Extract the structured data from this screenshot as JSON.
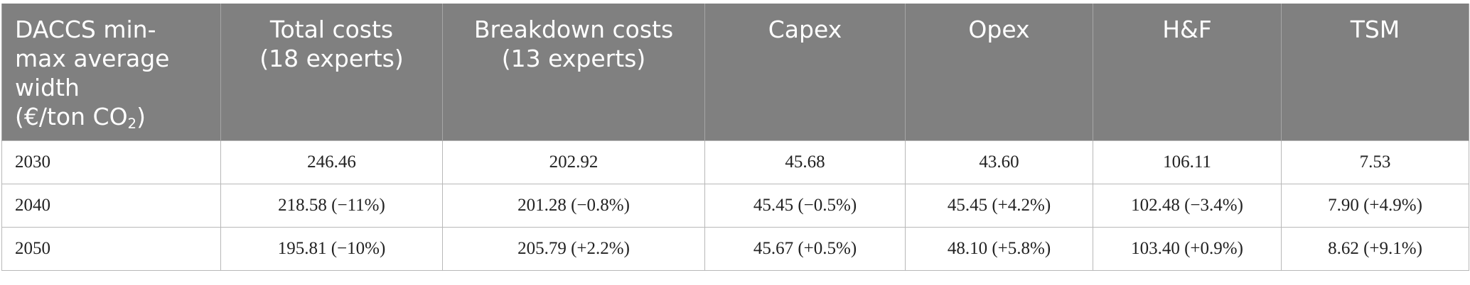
{
  "table": {
    "headers": [
      {
        "lines": [
          "DACCS min-",
          "max average",
          "width"
        ],
        "unit_prefix": "(€/ton CO",
        "unit_sub": "2",
        "unit_suffix": ")"
      },
      {
        "lines": [
          "Total costs",
          "(18 experts)"
        ]
      },
      {
        "lines": [
          "Breakdown costs",
          "(13 experts)"
        ]
      },
      {
        "lines": [
          "Capex"
        ]
      },
      {
        "lines": [
          "Opex"
        ]
      },
      {
        "lines": [
          "H&F"
        ]
      },
      {
        "lines": [
          "TSM"
        ]
      }
    ],
    "rows": [
      [
        "2030",
        "246.46",
        "202.92",
        "45.68",
        "43.60",
        "106.11",
        "7.53"
      ],
      [
        "2040",
        "218.58 (−11%)",
        "201.28 (−0.8%)",
        "45.45 (−0.5%)",
        "45.45 (+4.2%)",
        "102.48 (−3.4%)",
        "7.90 (+4.9%)"
      ],
      [
        "2050",
        "195.81 (−10%)",
        "205.79 (+2.2%)",
        "45.67 (+0.5%)",
        "48.10 (+5.8%)",
        "103.40 (+0.9%)",
        "8.62 (+9.1%)"
      ]
    ]
  }
}
